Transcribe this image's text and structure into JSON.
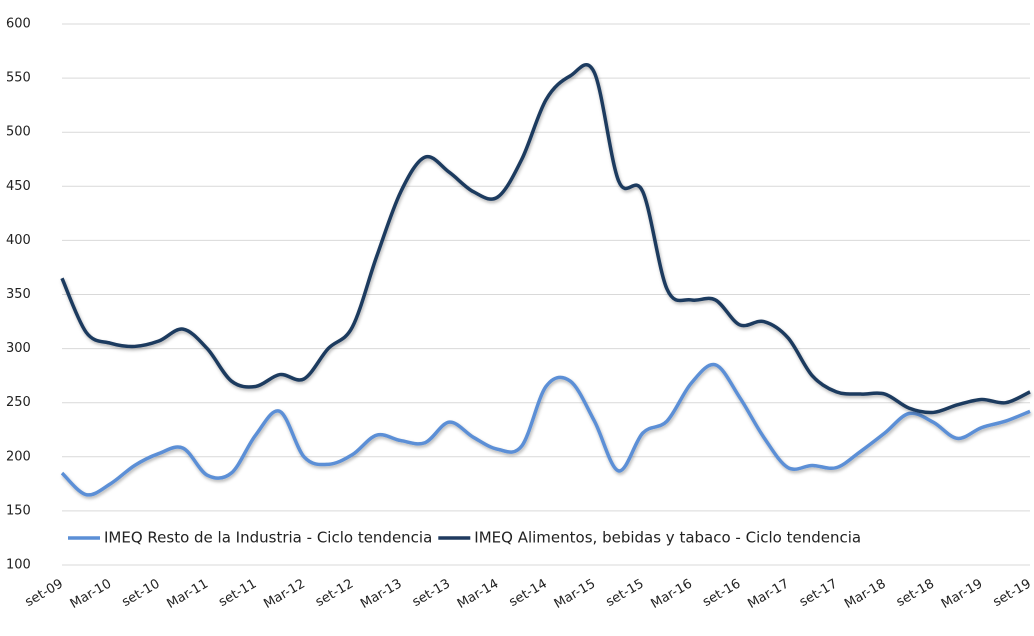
{
  "chart_data": {
    "type": "line",
    "categories": [
      "set-09",
      null,
      "Mar-10",
      null,
      "set-10",
      null,
      "Mar-11",
      null,
      "set-11",
      null,
      "Mar-12",
      null,
      "set-12",
      null,
      "Mar-13",
      null,
      "set-13",
      null,
      "Mar-14",
      null,
      "set-14",
      null,
      "Mar-15",
      null,
      "set-15",
      null,
      "Mar-16",
      null,
      "set-16",
      null,
      "Mar-17",
      null,
      "set-17",
      null,
      "Mar-18",
      null,
      "set-18",
      null,
      "Mar-19",
      null,
      "set-19"
    ],
    "series": [
      {
        "name": "IMEQ Resto de la Industria - Ciclo tendencia",
        "color": "#5b8fd6",
        "values": [
          185,
          165,
          175,
          192,
          203,
          208,
          183,
          185,
          220,
          242,
          200,
          193,
          202,
          220,
          215,
          213,
          232,
          218,
          207,
          210,
          265,
          270,
          233,
          187,
          222,
          233,
          268,
          285,
          255,
          218,
          190,
          192,
          190,
          205,
          222,
          240,
          232,
          217,
          227,
          233,
          242
        ]
      },
      {
        "name": "IMEQ Alimentos, bebidas y tabaco - Ciclo tendencia",
        "color": "#1f3a5f",
        "values": [
          365,
          315,
          305,
          302,
          307,
          318,
          300,
          270,
          265,
          276,
          272,
          300,
          320,
          385,
          445,
          477,
          463,
          445,
          440,
          475,
          530,
          552,
          555,
          455,
          445,
          355,
          345,
          345,
          322,
          325,
          310,
          275,
          260,
          258,
          258,
          245,
          241,
          248,
          253,
          250,
          260
        ]
      }
    ],
    "ylim": [
      100,
      600
    ],
    "yticks": [
      100,
      150,
      200,
      250,
      300,
      350,
      400,
      450,
      500,
      550,
      600
    ],
    "grid": true,
    "legend": "bottom"
  }
}
